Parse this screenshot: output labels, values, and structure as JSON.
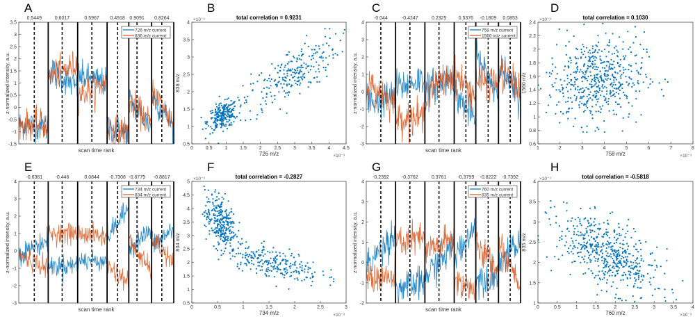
{
  "chart_data": [
    {
      "panel": "A",
      "type": "line",
      "xlabel": "scan time rank",
      "ylabel": "z-normalized intensity, a.u.",
      "ylim": [
        -1.5,
        3.5
      ],
      "yticks": [
        "-1.5",
        "-1",
        "-0.5",
        "0",
        "0.5",
        "1",
        "1.5",
        "2",
        "2.5",
        "3",
        "3.5"
      ],
      "segment_boundaries": [
        0,
        133,
        266,
        399,
        497,
        600,
        700
      ],
      "segment_midlines": [
        70,
        196,
        330,
        446,
        534,
        646
      ],
      "segment_correlations": [
        "0.5449",
        "0.6017",
        "0.5967",
        "0.4918",
        "0.9091",
        "0.8264"
      ],
      "noise": 0.3,
      "series": [
        {
          "name": "726 m/z current",
          "color": "#0072BD",
          "segment_levels": [
            [
              -0.7,
              -0.8
            ],
            [
              1.6,
              0.8
            ],
            [
              1.3,
              1.0
            ],
            [
              -0.8,
              -1.1
            ],
            [
              0.3,
              -0.8
            ],
            [
              0.5,
              -0.8
            ]
          ]
        },
        {
          "name": "836 m/z current",
          "color": "#D95319",
          "segment_levels": [
            [
              -0.7,
              -0.7
            ],
            [
              1.2,
              1.8
            ],
            [
              0.5,
              1.0
            ],
            [
              -0.8,
              -1.0
            ],
            [
              0.3,
              -0.7
            ],
            [
              0.8,
              -0.7
            ]
          ]
        }
      ]
    },
    {
      "panel": "B",
      "type": "scatter",
      "title": "total correlation = 0.9231",
      "xlabel": "726 m/z",
      "ylabel": "836 m/z",
      "x_exponent": "×10⁻³",
      "y_exponent": "×10⁻³",
      "xlim": [
        0,
        4.5
      ],
      "ylim": [
        0.5,
        4
      ],
      "xticks": [
        "0",
        "0.5",
        "1",
        "1.5",
        "2",
        "2.5",
        "3",
        "3.5",
        "4",
        "4.5"
      ],
      "yticks": [
        "0.5",
        "1",
        "1.5",
        "2",
        "2.5",
        "3",
        "3.5",
        "4"
      ],
      "clusters": [
        {
          "n": 250,
          "cx": 0.9,
          "cy": 1.3,
          "sx": 0.22,
          "sy": 0.2,
          "rho": 0.4
        },
        {
          "n": 250,
          "cx": 2.9,
          "cy": 2.5,
          "sx": 0.7,
          "sy": 0.55,
          "rho": 0.75
        }
      ],
      "color": "#0072BD"
    },
    {
      "panel": "C",
      "type": "line",
      "xlabel": "scan time rank",
      "ylabel": "z-normalized intensity, a.u.",
      "ylim": [
        -3,
        4
      ],
      "yticks": [
        "-3",
        "-2",
        "-1",
        "0",
        "1",
        "2",
        "3",
        "4"
      ],
      "segment_boundaries": [
        0,
        133,
        266,
        399,
        497,
        600,
        700
      ],
      "segment_midlines": [
        66,
        198,
        330,
        452,
        553,
        653
      ],
      "segment_correlations": [
        "-0.044",
        "-0.4247",
        "0.2325",
        "0.5376",
        "-0.1809",
        "0.0853"
      ],
      "noise": 0.5,
      "series": [
        {
          "name": "758 m/z current",
          "color": "#0072BD",
          "segment_levels": [
            [
              -0.6,
              -0.3
            ],
            [
              0.2,
              0.8
            ],
            [
              0,
              1
            ],
            [
              0,
              -1.6
            ],
            [
              2,
              0
            ],
            [
              1.5,
              -0.5
            ]
          ]
        },
        {
          "name": "1560 m/z current",
          "color": "#D95319",
          "segment_levels": [
            [
              0.5,
              -0.6
            ],
            [
              -1.5,
              -1.5
            ],
            [
              0,
              1
            ],
            [
              1,
              -0.2
            ],
            [
              0.7,
              0.5
            ],
            [
              1,
              0.3
            ]
          ]
        }
      ]
    },
    {
      "panel": "D",
      "type": "scatter",
      "title": "total correlation = 0.1030",
      "xlabel": "758 m/z",
      "ylabel": "1560 m/z",
      "x_exponent": "×10⁻³",
      "y_exponent": "×10⁻³",
      "xlim": [
        1,
        8
      ],
      "ylim": [
        0.6,
        2.4
      ],
      "xticks": [
        "1",
        "2",
        "3",
        "4",
        "5",
        "6",
        "7",
        "8"
      ],
      "yticks": [
        "0.6",
        "0.8",
        "1",
        "1.2",
        "1.4",
        "1.6",
        "1.8",
        "2",
        "2.2",
        "2.4"
      ],
      "clusters": [
        {
          "n": 550,
          "cx": 3.6,
          "cy": 1.55,
          "sx": 1.1,
          "sy": 0.32,
          "rho": 0.1
        }
      ],
      "color": "#0072BD"
    },
    {
      "panel": "E",
      "type": "line",
      "xlabel": "scan time rank",
      "ylabel": "z-normalized intensity, a.u.",
      "ylim": [
        -3,
        4
      ],
      "yticks": [
        "-3",
        "-2",
        "-1",
        "0",
        "1",
        "2",
        "3",
        "4"
      ],
      "segment_boundaries": [
        0,
        133,
        266,
        399,
        497,
        600,
        700
      ],
      "segment_midlines": [
        70,
        196,
        330,
        446,
        534,
        646
      ],
      "segment_correlations": [
        "-0.6361",
        "-0.446",
        "0.0844",
        "-0.7308",
        "-0.8779",
        "-0.8817"
      ],
      "noise": 0.3,
      "series": [
        {
          "name": "734 m/z current",
          "color": "#0072BD",
          "segment_levels": [
            [
              -0.2,
              0.6
            ],
            [
              -0.9,
              -0.8
            ],
            [
              -0.6,
              -0.5
            ],
            [
              0.8,
              2.5
            ],
            [
              0.2,
              1.2
            ],
            [
              0.2,
              1.3
            ]
          ]
        },
        {
          "name": "834 m/z current",
          "color": "#D95319",
          "segment_levels": [
            [
              -0.2,
              -1
            ],
            [
              1,
              1
            ],
            [
              1,
              0.8
            ],
            [
              -0.8,
              -1.8
            ],
            [
              0.6,
              -1.2
            ],
            [
              0.8,
              -0.8
            ]
          ]
        }
      ]
    },
    {
      "panel": "F",
      "type": "scatter",
      "title": "total correlation = -0.2827",
      "xlabel": "734 m/z",
      "ylabel": "834 m/z",
      "x_exponent": "×10⁻³",
      "y_exponent": "×10⁻³",
      "xlim": [
        0,
        3
      ],
      "ylim": [
        0.5,
        5
      ],
      "xticks": [
        "0",
        "0.5",
        "1",
        "1.5",
        "2",
        "2.5",
        "3"
      ],
      "yticks": [
        "0.5",
        "1",
        "1.5",
        "2",
        "2.5",
        "3",
        "3.5",
        "4",
        "4.5",
        "5"
      ],
      "clusters": [
        {
          "n": 300,
          "cx": 0.55,
          "cy": 3.5,
          "sx": 0.15,
          "sy": 0.5,
          "rho": -0.3
        },
        {
          "n": 250,
          "cx": 1.6,
          "cy": 2.0,
          "sx": 0.45,
          "sy": 0.35,
          "rho": -0.6
        }
      ],
      "color": "#0072BD"
    },
    {
      "panel": "G",
      "type": "line",
      "xlabel": "scan time rank",
      "ylabel": "z-normalized intensity, a.u.",
      "ylim": [
        -2,
        4
      ],
      "yticks": [
        "-2",
        "-1",
        "0",
        "1",
        "2",
        "3",
        "4"
      ],
      "segment_boundaries": [
        0,
        133,
        266,
        399,
        497,
        600,
        700
      ],
      "segment_midlines": [
        66,
        198,
        330,
        452,
        553,
        653
      ],
      "segment_correlations": [
        "-0.2392",
        "-0.3762",
        "0.3761",
        "-0.3799",
        "-0.8222",
        "-0.7392"
      ],
      "noise": 0.4,
      "series": [
        {
          "name": "760 m/z current",
          "color": "#0072BD",
          "segment_levels": [
            [
              -0.2,
              1.5
            ],
            [
              -1.3,
              -1.0
            ],
            [
              -0.7,
              0.8
            ],
            [
              0.2,
              1.8
            ],
            [
              -0.8,
              -0.6
            ],
            [
              0,
              1
            ]
          ]
        },
        {
          "name": "835 m/z current",
          "color": "#D95319",
          "segment_levels": [
            [
              -0.7,
              -0.8
            ],
            [
              1,
              1.2
            ],
            [
              0.5,
              1.2
            ],
            [
              -0.9,
              -1.3
            ],
            [
              0.8,
              -0.4
            ],
            [
              1,
              -1
            ]
          ]
        }
      ]
    },
    {
      "panel": "H",
      "type": "scatter",
      "title": "total correlation = -0.5818",
      "xlabel": "760 m/z",
      "ylabel": "835 m/z",
      "x_exponent": "×10⁻³",
      "y_exponent": "×10⁻³",
      "xlim": [
        0,
        4
      ],
      "ylim": [
        1,
        4
      ],
      "xticks": [
        "0",
        "0.5",
        "1",
        "1.5",
        "2",
        "2.5",
        "3",
        "3.5",
        "4"
      ],
      "yticks": [
        "1",
        "1.5",
        "2",
        "2.5",
        "3",
        "3.5",
        "4"
      ],
      "clusters": [
        {
          "n": 550,
          "cx": 1.8,
          "cy": 2.2,
          "sx": 0.65,
          "sy": 0.5,
          "rho": -0.6
        }
      ],
      "color": "#0072BD"
    }
  ]
}
